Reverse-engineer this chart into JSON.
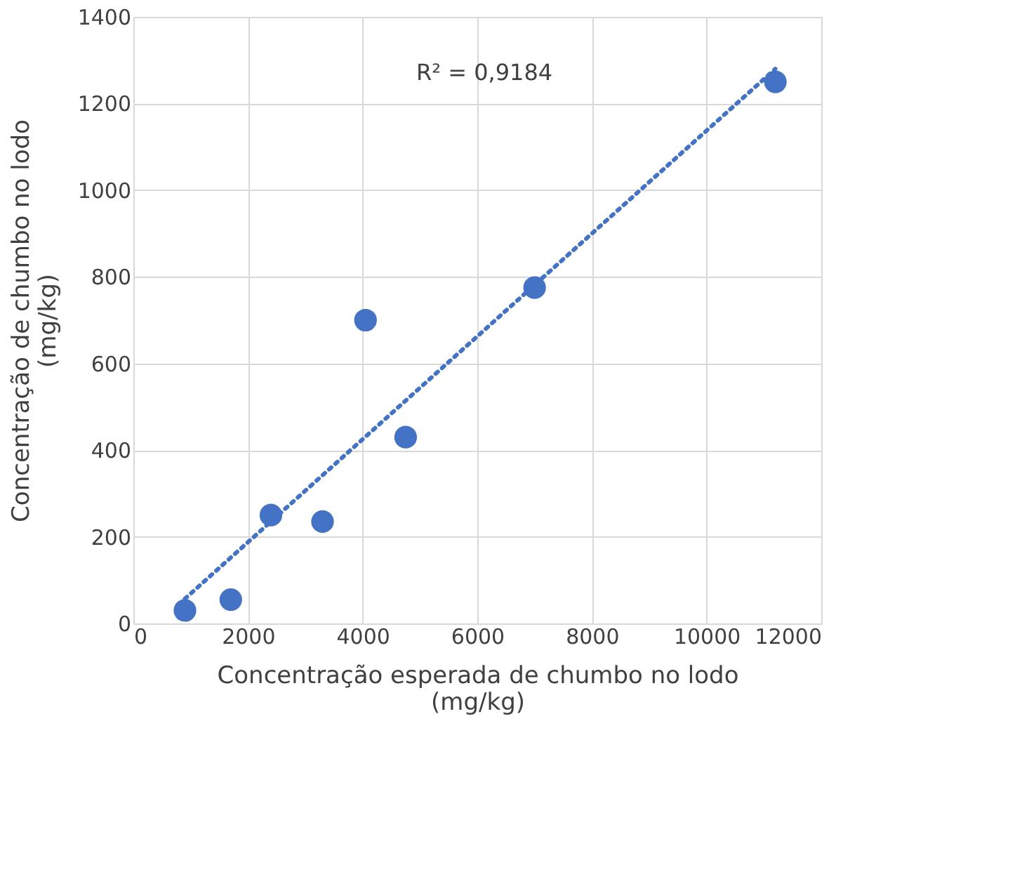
{
  "chart_data": {
    "type": "scatter",
    "xlabel": "Concentração esperada de chumbo no lodo\n(mg/kg)",
    "ylabel": "Concentração de chumbo no lodo\n(mg/kg)",
    "x": [
      900,
      1700,
      2400,
      3300,
      4050,
      4750,
      7000,
      11200
    ],
    "series": [
      {
        "color": "#4472c4",
        "marker": "circle",
        "values": [
          30,
          55,
          250,
          235,
          700,
          430,
          775,
          1250
        ]
      },
      {
        "type": "line",
        "color": "#4472c4",
        "line_style": "dotted",
        "x": [
          900,
          11200
        ],
        "values": [
          57,
          1280
        ]
      }
    ],
    "annotations": [
      "R² = 0,9184"
    ],
    "xlim": [
      0,
      12000
    ],
    "xticks": [
      0,
      2000,
      4000,
      6000,
      8000,
      10000,
      12000
    ],
    "ylim": [
      0,
      1400
    ],
    "yticks": [
      0,
      200,
      400,
      600,
      800,
      1000,
      1200,
      1400
    ],
    "grid": true
  }
}
